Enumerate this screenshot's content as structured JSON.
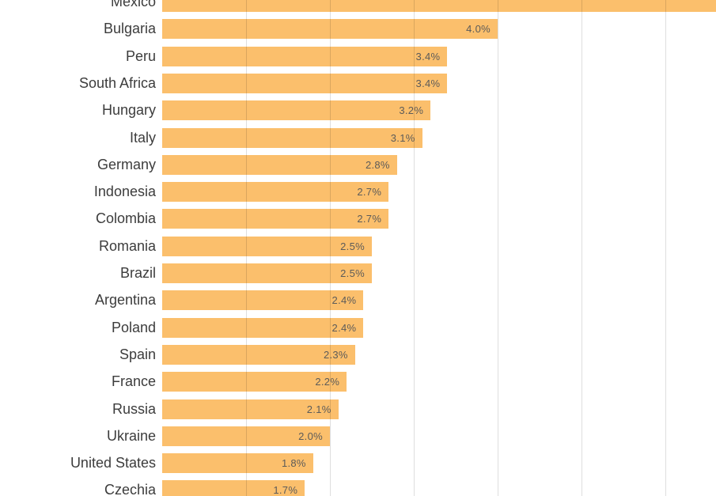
{
  "chart_data": {
    "type": "bar",
    "orientation": "horizontal",
    "title": "",
    "xlabel": "",
    "ylabel": "",
    "unit": "%",
    "categories": [
      "Mexico",
      "Bulgaria",
      "Peru",
      "South Africa",
      "Hungary",
      "Italy",
      "Germany",
      "Indonesia",
      "Colombia",
      "Romania",
      "Brazil",
      "Argentina",
      "Poland",
      "Spain",
      "France",
      "Russia",
      "Ukraine",
      "United States",
      "Czechia"
    ],
    "values": [
      null,
      4.0,
      3.4,
      3.4,
      3.2,
      3.1,
      2.8,
      2.7,
      2.7,
      2.5,
      2.5,
      2.4,
      2.4,
      2.3,
      2.2,
      2.1,
      2.0,
      1.8,
      1.7
    ],
    "value_labels": [
      "",
      "4.0%",
      "3.4%",
      "3.4%",
      "3.2%",
      "3.1%",
      "2.8%",
      "2.7%",
      "2.7%",
      "2.5%",
      "2.5%",
      "2.4%",
      "2.4%",
      "2.3%",
      "2.2%",
      "2.1%",
      "2.0%",
      "1.8%",
      "1.7%"
    ],
    "first_bar_overflows_right_edge": true,
    "first_row_cut_at_top": true,
    "last_row_cut_at_bottom": true,
    "grid": true,
    "x_gridlines_pct": [
      1,
      2,
      3,
      4,
      5,
      6
    ],
    "xlim": [
      0,
      6.6
    ],
    "legend": null,
    "colors": {
      "bar": "#FBBF6C",
      "background": "#FFFFFF",
      "category_label": "#3C3C3C",
      "value_label": "#5C5B59",
      "gridline": "rgba(0,0,0,0.13)"
    }
  }
}
